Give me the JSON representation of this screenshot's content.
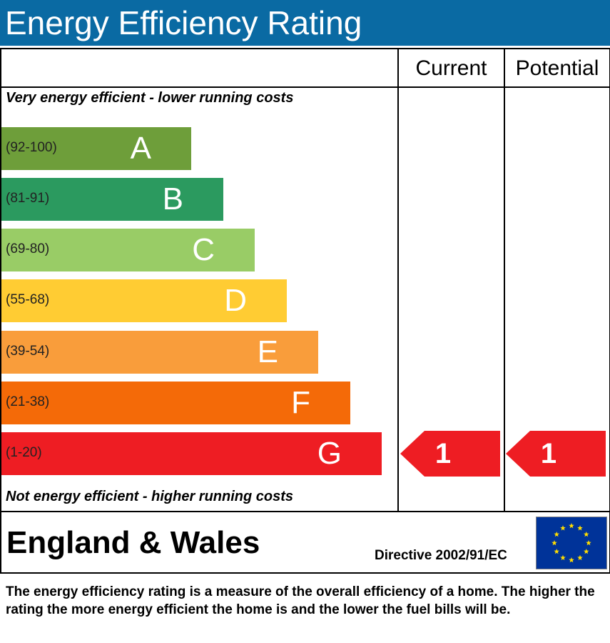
{
  "title": "Energy Efficiency Rating",
  "columns": {
    "current": "Current",
    "potential": "Potential"
  },
  "top_caption": "Very energy efficient - lower running costs",
  "bottom_caption": "Not energy efficient - higher running costs",
  "bands": [
    {
      "letter": "A",
      "range": "(92-100)",
      "color": "#6e9e3a"
    },
    {
      "letter": "B",
      "range": "(81-91)",
      "color": "#2b9a5f"
    },
    {
      "letter": "C",
      "range": "(69-80)",
      "color": "#99cc66"
    },
    {
      "letter": "D",
      "range": "(55-68)",
      "color": "#ffcc33"
    },
    {
      "letter": "E",
      "range": "(39-54)",
      "color": "#f99d3b"
    },
    {
      "letter": "F",
      "range": "(21-38)",
      "color": "#f46a08"
    },
    {
      "letter": "G",
      "range": "(1-20)",
      "color": "#ee1d23"
    }
  ],
  "ratings": {
    "current": {
      "value": "1",
      "band": "G",
      "color": "#ee1d23"
    },
    "potential": {
      "value": "1",
      "band": "G",
      "color": "#ee1d23"
    }
  },
  "region": "England & Wales",
  "directive": "Directive 2002/91/EC",
  "flag": {
    "icon": "eu-flag-icon",
    "background": "#003399",
    "star_color": "#ffdd00"
  },
  "explanation": "The energy efficiency rating is a measure of the overall efficiency of a home. The higher the rating the more energy efficient the home is and the lower the fuel bills will be."
}
